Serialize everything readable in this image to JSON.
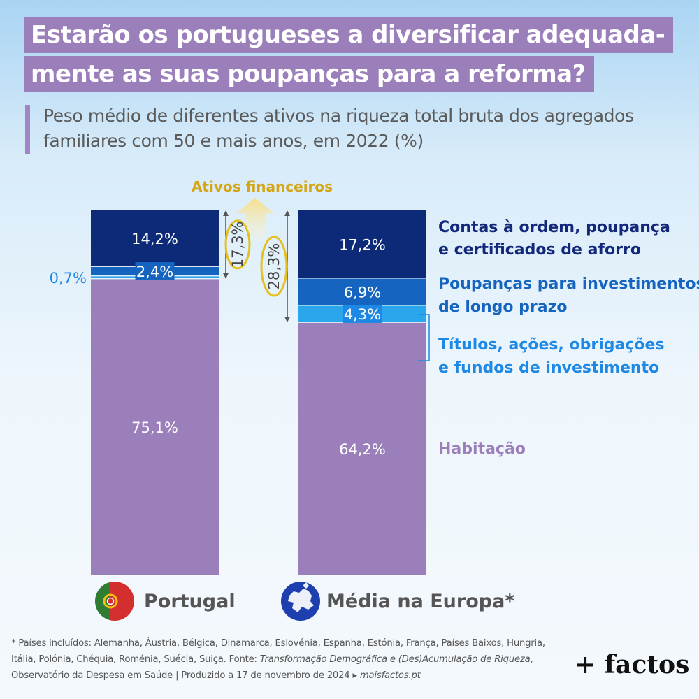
{
  "title": {
    "line1": "Estarão os portugueses a diversificar adequada-",
    "line2": "mente as suas poupanças para a reforma?"
  },
  "subtitle": {
    "line1": "Peso médio de diferentes ativos na riqueza total bruta dos agregados",
    "line2": "familiares com 50 e mais anos, em 2022 (%)"
  },
  "chart_data": {
    "type": "bar",
    "stacked": true,
    "unit": "%",
    "categories": [
      "Portugal",
      "Média na Europa*"
    ],
    "series": [
      {
        "name": "Habitação",
        "values": [
          75.1,
          64.2
        ],
        "labels": [
          "75,1%",
          "64,2%"
        ],
        "color": "#9b7fbb"
      },
      {
        "name": "Títulos, ações, obrigações e fundos de investimento",
        "values": [
          0.7,
          4.3
        ],
        "labels": [
          "0,7%",
          "4,3%"
        ],
        "color": "#2aa6ec"
      },
      {
        "name": "Poupanças para investimentos de longo prazo",
        "values": [
          2.4,
          6.9
        ],
        "labels": [
          "2,4%",
          "6,9%"
        ],
        "color": "#1565c0"
      },
      {
        "name": "Contas à ordem, poupança e certificados de aforro",
        "values": [
          14.2,
          17.2
        ],
        "labels": [
          "14,2%",
          "17,2%"
        ],
        "color": "#0d2a78"
      }
    ],
    "group_annotation": {
      "label": "Ativos financeiros",
      "totals": [
        17.3,
        28.3
      ],
      "total_labels": [
        "17,3%",
        "28,3%"
      ]
    },
    "legend_placement": "right",
    "grid": false
  },
  "legend": {
    "contas": {
      "line1": "Contas à ordem, poupança",
      "line2": "e certificados de aforro",
      "color": "#13287a"
    },
    "poupancas": {
      "line1": "Poupanças para investimentos",
      "line2": "de longo prazo",
      "color": "#1565c0"
    },
    "titulos": {
      "line1": "Títulos, ações, obrigações",
      "line2": "e fundos de investimento",
      "color": "#1e88e5"
    },
    "habitacao": {
      "line1": "Habitação",
      "color": "#9b7fbb"
    }
  },
  "countries": {
    "portugal": "Portugal",
    "europe": "Média na Europa*"
  },
  "footnote": {
    "part1": "* Países incluídos: Alemanha, Áustria, Bélgica, Dinamarca, Eslovénia, Espanha, Estónia, França, Países Baixos, Hungria, Itália, Polónia, Chéquia, Roménia, Suécia, Suiça. Fonte: ",
    "source_title": "Transformação Demográfica e (Des)Acumulação de Riqueza",
    "part2": ", Observatório da Despesa em Saúde | Produzido a 17 de novembro de 2024 ▸ ",
    "site": "maisfactos.pt"
  },
  "brand": "+ factos",
  "icons": {
    "portugal": "portugal-flag-icon",
    "europe": "europe-map-icon",
    "arrow": "arrow-up-icon"
  }
}
